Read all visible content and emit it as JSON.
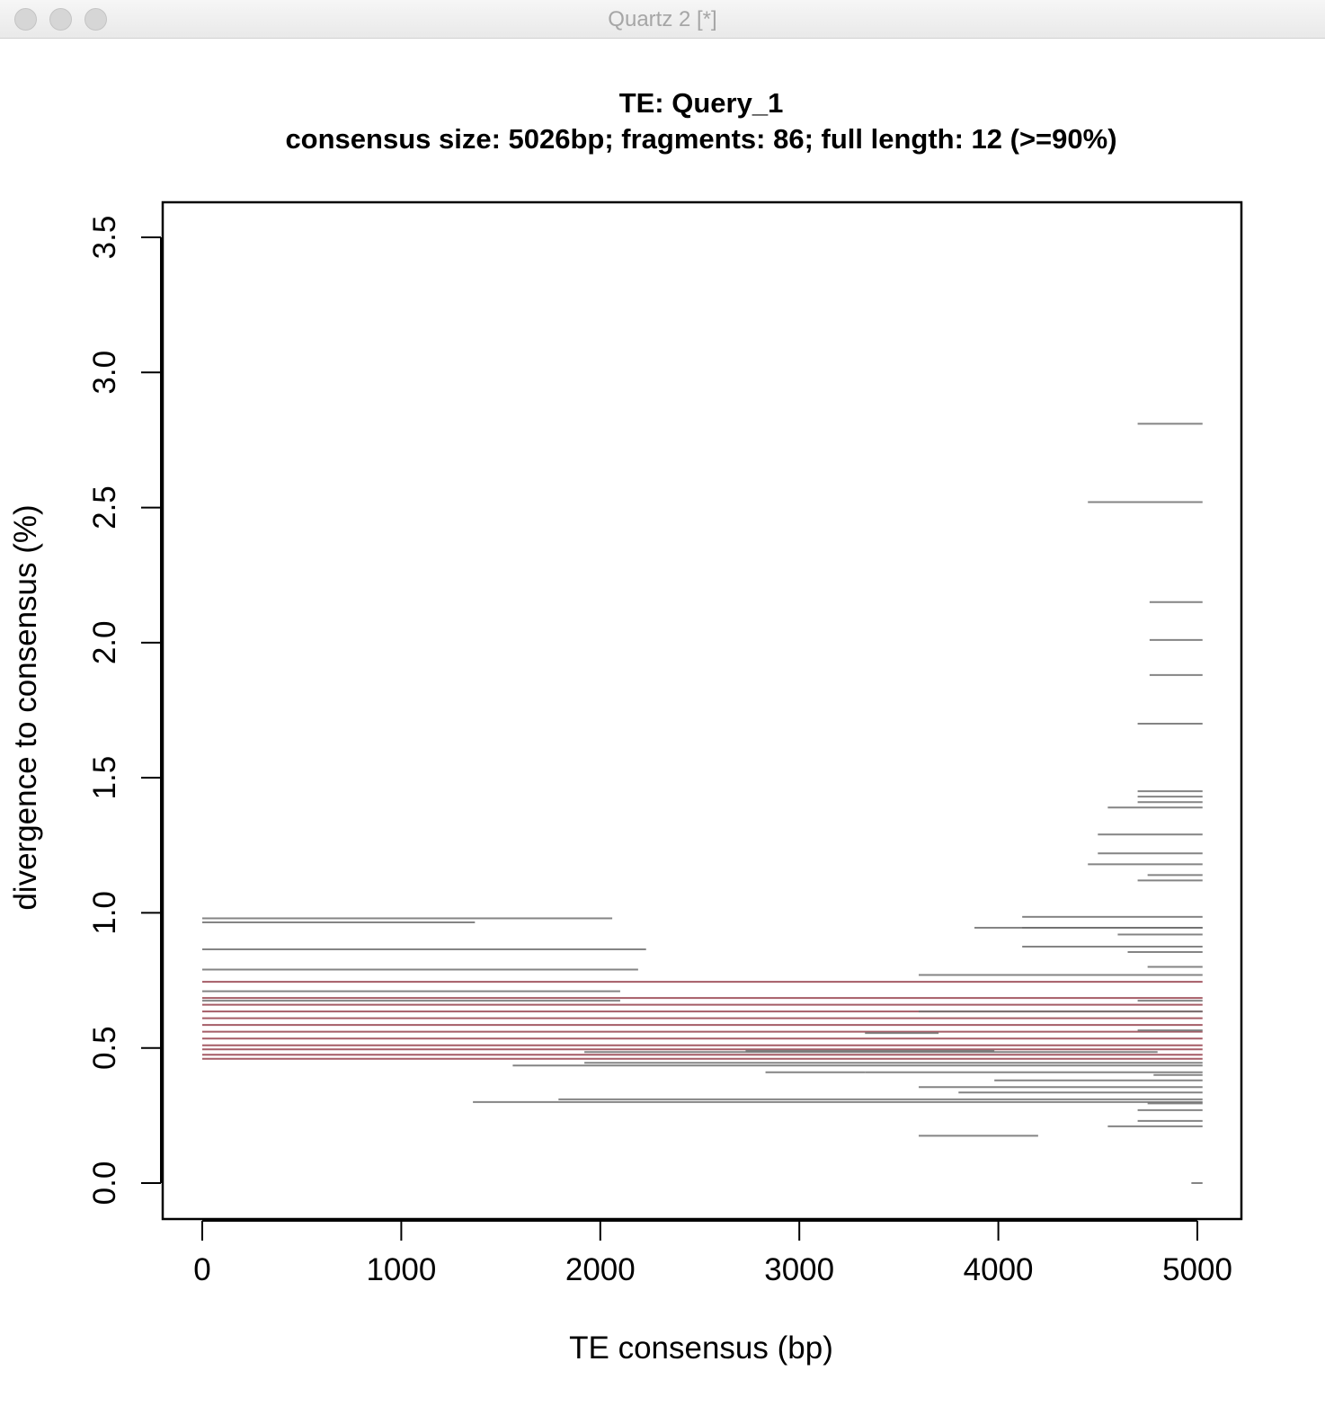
{
  "window": {
    "title": "Quartz 2 [*]",
    "controls": [
      "close-button",
      "minimize-button",
      "zoom-button"
    ],
    "control_color": "#d6d6d6"
  },
  "chart_data": {
    "type": "segments",
    "title": "TE: Query_1",
    "subtitle": "consensus size: 5026bp; fragments: 86; full length: 12 (>=90%)",
    "xlabel": "TE consensus (bp)",
    "ylabel": "divergence to consensus (%)",
    "xlim": [
      0,
      5026
    ],
    "ylim": [
      0,
      3.5
    ],
    "x_ticks": [
      0,
      1000,
      2000,
      3000,
      4000,
      5000
    ],
    "x_tick_labels": [
      "0",
      "1000",
      "2000",
      "3000",
      "4000",
      "5000"
    ],
    "y_ticks": [
      0,
      0.5,
      1,
      1.5,
      2,
      2.5,
      3,
      3.5
    ],
    "y_tick_labels": [
      "0.0",
      "0.5",
      "1.0",
      "1.5",
      "2.0",
      "2.5",
      "3.0",
      "3.5"
    ],
    "grid": false,
    "legend": "none",
    "colors": {
      "fragment": "#6e6e6e",
      "dense_fragment": "#262626",
      "full_length": "#9b4a55"
    },
    "series": [
      {
        "kind": "full_length",
        "segments": [
          [
            0,
            5026,
            0.745
          ],
          [
            0,
            5026,
            0.685
          ],
          [
            0,
            5026,
            0.66
          ],
          [
            0,
            5026,
            0.635
          ],
          [
            0,
            5026,
            0.61
          ],
          [
            0,
            5026,
            0.585
          ],
          [
            0,
            5026,
            0.56
          ],
          [
            0,
            5026,
            0.535
          ],
          [
            0,
            5026,
            0.51
          ],
          [
            0,
            5026,
            0.495
          ],
          [
            0,
            5026,
            0.475
          ],
          [
            0,
            5026,
            0.46
          ]
        ]
      },
      {
        "kind": "fragment",
        "segments": [
          [
            4700,
            5026,
            2.81
          ],
          [
            4450,
            5026,
            2.52
          ],
          [
            4760,
            5026,
            2.15
          ],
          [
            4760,
            5026,
            2.01
          ],
          [
            4760,
            5026,
            1.88
          ],
          [
            4700,
            5026,
            1.7
          ],
          [
            4700,
            5026,
            1.45
          ],
          [
            4700,
            5026,
            1.43
          ],
          [
            4700,
            5026,
            1.41
          ],
          [
            4550,
            5026,
            1.39
          ],
          [
            4500,
            5026,
            1.29
          ],
          [
            4500,
            5026,
            1.22
          ],
          [
            4450,
            5026,
            1.18
          ],
          [
            4750,
            5026,
            1.14
          ],
          [
            4700,
            5026,
            1.12
          ],
          [
            0,
            2060,
            0.98
          ],
          [
            0,
            1370,
            0.965
          ],
          [
            4120,
            5026,
            0.985
          ],
          [
            3880,
            5026,
            0.945
          ],
          [
            4120,
            5026,
            0.945
          ],
          [
            4600,
            5026,
            0.92
          ],
          [
            0,
            2230,
            0.865
          ],
          [
            4120,
            5026,
            0.875
          ],
          [
            4650,
            5026,
            0.855
          ],
          [
            0,
            2190,
            0.79
          ],
          [
            4750,
            5026,
            0.8
          ],
          [
            3600,
            5026,
            0.77
          ],
          [
            0,
            2100,
            0.71
          ],
          [
            0,
            2100,
            0.675
          ],
          [
            4700,
            5026,
            0.675
          ],
          [
            3600,
            5026,
            0.635
          ],
          [
            3330,
            3700,
            0.555
          ],
          [
            4700,
            5026,
            0.565
          ],
          [
            1920,
            4800,
            0.485
          ],
          [
            2730,
            3980,
            0.49
          ],
          [
            1920,
            5026,
            0.445
          ],
          [
            1560,
            5026,
            0.435
          ],
          [
            2830,
            3330,
            0.41
          ],
          [
            3330,
            5026,
            0.41
          ],
          [
            4780,
            5026,
            0.4
          ],
          [
            3980,
            5026,
            0.38
          ],
          [
            3600,
            5026,
            0.355
          ],
          [
            3800,
            5026,
            0.335
          ],
          [
            1360,
            5026,
            0.3
          ],
          [
            1790,
            5026,
            0.31
          ],
          [
            4750,
            5026,
            0.295
          ],
          [
            4700,
            5026,
            0.27
          ],
          [
            4700,
            5026,
            0.23
          ],
          [
            4550,
            5026,
            0.21
          ],
          [
            3600,
            4200,
            0.175
          ],
          [
            4970,
            5026,
            0.0
          ]
        ]
      }
    ]
  }
}
